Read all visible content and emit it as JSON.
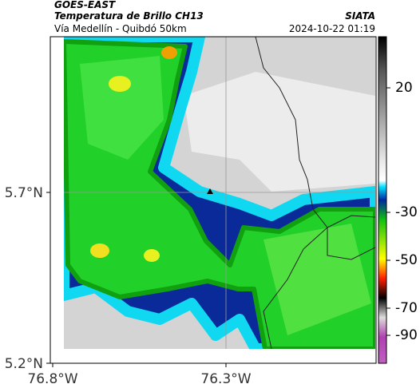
{
  "header": {
    "title": "GOES-EAST",
    "subtitle": "Temperatura de Brillo CH13",
    "region": "Vía Medellín - Quibdó 50km",
    "source": "SIATA",
    "datetime": "2024-10-22 01:19"
  },
  "axes": {
    "lat_labels": [
      "5.7°N",
      "5.2°N"
    ],
    "lon_labels": [
      "76.8°W",
      "76.3°W"
    ]
  },
  "colorbar": {
    "ticks": [
      20,
      -30,
      -50,
      -70,
      -90
    ]
  }
}
